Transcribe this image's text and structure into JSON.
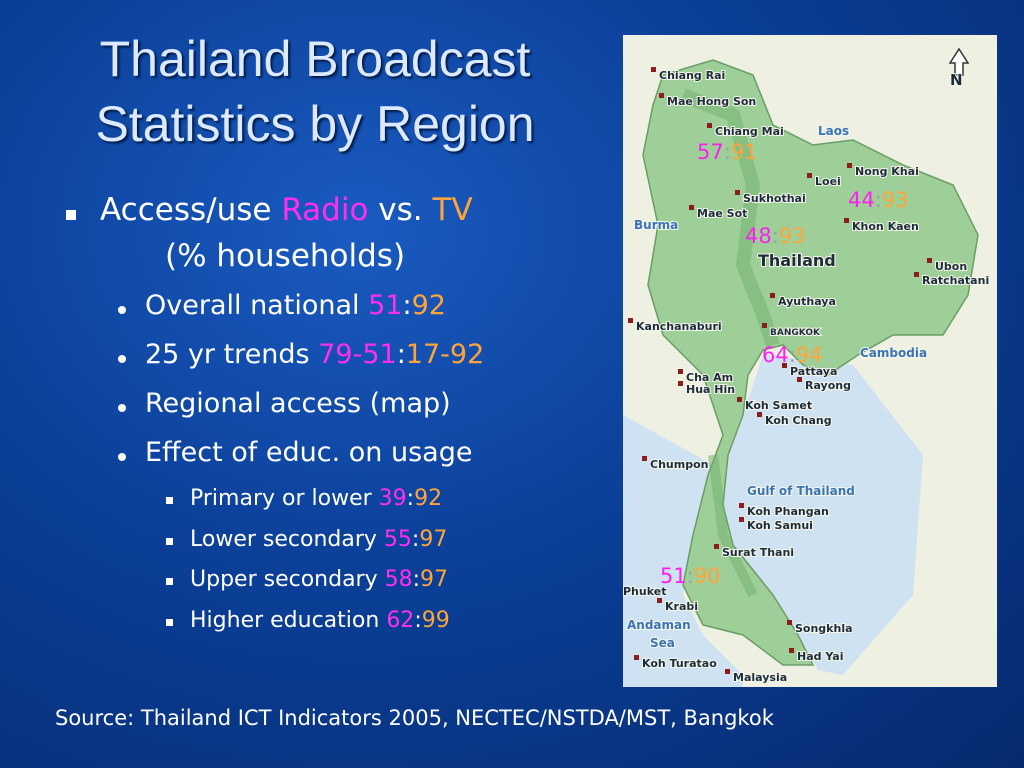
{
  "title": {
    "lines": [
      "Thailand Broadcast",
      "Statistics by Region"
    ]
  },
  "bullet": {
    "prefix": "Access/use",
    "radio": "Radio",
    "middle": "vs.",
    "tv": "TV",
    "suffix": "(% households)"
  },
  "items": [
    {
      "label": "Overall national",
      "radio": 51,
      "sep": ":",
      "tv": 92
    },
    {
      "label": "25 yr trends",
      "radio": "79-51",
      "sep": ":",
      "tv": "17-92"
    },
    {
      "label": "Regional access (map)"
    },
    {
      "label": "Effect of educ. on usage"
    }
  ],
  "education": [
    {
      "label": "Primary or lower",
      "radio": 39,
      "sep": ":",
      "tv": 92
    },
    {
      "label": "Lower secondary",
      "radio": 55,
      "sep": ":",
      "tv": 97
    },
    {
      "label": "Upper secondary",
      "radio": 58,
      "sep": ":",
      "tv": 97
    },
    {
      "label": "Higher education",
      "radio": 62,
      "sep": ":",
      "tv": 99
    }
  ],
  "map": {
    "north": "N",
    "labels": [
      "Chiang Rai",
      "Mae Hong Son",
      "Chiang Mai",
      "Laos",
      "Nong Khai",
      "Loei",
      "Sukhothai",
      "Mae Sot",
      "Burma",
      "Khon Kaen",
      "Thailand",
      "Ubon",
      "Ratchatani",
      "Ayuthaya",
      "Kanchanaburi",
      "BANGKOK",
      "Cambodia",
      "Cha Am",
      "Hua Hin",
      "Pattaya",
      "Rayong",
      "Koh Samet",
      "Koh Chang",
      "Chumpon",
      "Gulf of Thailand",
      "Koh Phangan",
      "Koh Samui",
      "Surat Thani",
      "Phuket",
      "Krabi",
      "Andaman",
      "Sea",
      "Songkhla",
      "Koh Turatao",
      "Had Yai",
      "Malaysia"
    ],
    "regions": [
      {
        "radio": 57,
        "sep": ":",
        "tv": 91
      },
      {
        "radio": 44,
        "sep": ":",
        "tv": 93
      },
      {
        "radio": 48,
        "sep": ":",
        "tv": 93
      },
      {
        "radio": 64,
        "sep": ":",
        "tv": 94
      },
      {
        "radio": 51,
        "sep": ":",
        "tv": 90
      }
    ]
  },
  "source": "Source: Thailand ICT Indicators 2005, NECTEC/NSTDA/MST, Bangkok"
}
